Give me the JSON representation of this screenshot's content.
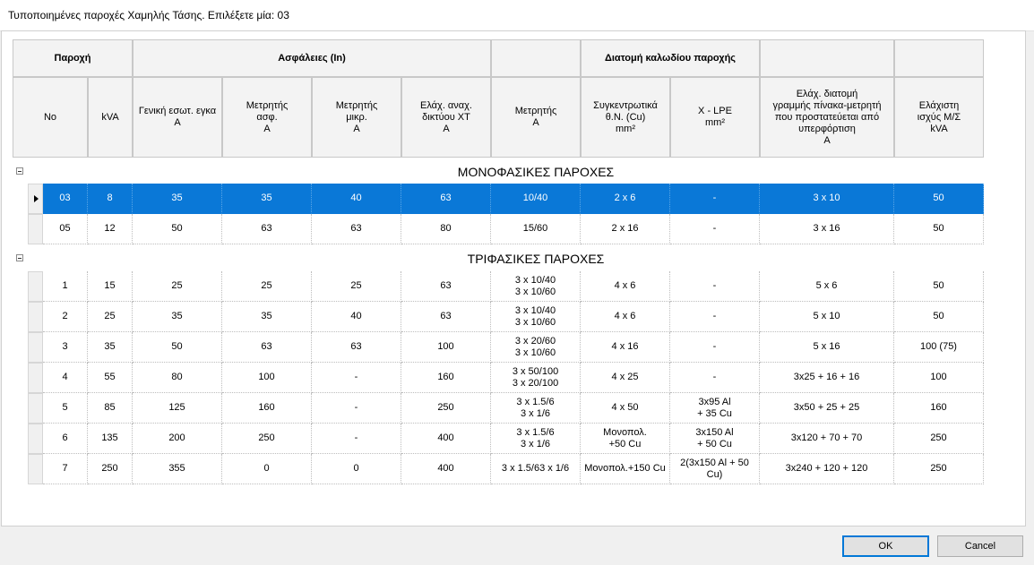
{
  "window": {
    "title": "Τυποποιημένες παροχές Χαμηλής Τάσης. Επιλέξετε μία: 03"
  },
  "header": {
    "groups": {
      "paroxi": "Παροχή",
      "asfaleies": "Ασφάλειες (In)",
      "empty1": "",
      "diatomi": "Διατομή καλωδίου παροχής",
      "empty2": "",
      "empty3": ""
    },
    "columns": [
      "No",
      "kVA",
      "Γενική εσωτ. εγκα\nA",
      "Μετρητής\nασφ.\nA",
      "Μετρητής\nμικρ.\nA",
      "Ελάχ. αναχ.\nδικτύου ΧΤ\nA",
      "Μετρητής\nA",
      "Συγκεντρωτικά\nθ.Ν. (Cu)\nmm²",
      "X - LPE\nmm²",
      "Ελάχ. διατομή\nγραμμής πίνακα-μετρητή\nπου προστατεύεται από\nυπερφόρτιση\nA",
      "Ελάχιστη\nισχύς Μ/Σ\nkVA"
    ]
  },
  "groups": [
    {
      "title": "ΜΟΝΟΦΑΣΙΚΕΣ ΠΑΡΟΧΕΣ",
      "rows": [
        [
          "03",
          "8",
          "35",
          "35",
          "40",
          "63",
          "10/40",
          "2 x 6",
          "-",
          "3 x 10",
          "50"
        ],
        [
          "05",
          "12",
          "50",
          "63",
          "63",
          "80",
          "15/60",
          "2 x 16",
          "-",
          "3 x 16",
          "50"
        ]
      ]
    },
    {
      "title": "ΤΡΙΦΑΣΙΚΕΣ ΠΑΡΟΧΕΣ",
      "rows": [
        [
          "1",
          "15",
          "25",
          "25",
          "25",
          "63",
          "3 x 10/40\n3 x 10/60",
          "4 x 6",
          "-",
          "5 x 6",
          "50"
        ],
        [
          "2",
          "25",
          "35",
          "35",
          "40",
          "63",
          "3 x 10/40\n3 x 10/60",
          "4 x 6",
          "-",
          "5 x 10",
          "50"
        ],
        [
          "3",
          "35",
          "50",
          "63",
          "63",
          "100",
          "3 x 20/60\n3 x 10/60",
          "4 x 16",
          "-",
          "5 x 16",
          "100 (75)"
        ],
        [
          "4",
          "55",
          "80",
          "100",
          "-",
          "160",
          "3 x 50/100\n3 x 20/100",
          "4 x 25",
          "-",
          "3x25 + 16 + 16",
          "100"
        ],
        [
          "5",
          "85",
          "125",
          "160",
          "-",
          "250",
          "3 x 1.5/6\n3 x 1/6",
          "4 x 50",
          "3x95 Al\n+ 35 Cu",
          "3x50 + 25 + 25",
          "160"
        ],
        [
          "6",
          "135",
          "200",
          "250",
          "-",
          "400",
          "3 x 1.5/6\n3 x 1/6",
          "Μονοπολ.\n+50 Cu",
          "3x150 Al\n+ 50 Cu",
          "3x120 + 70 + 70",
          "250"
        ],
        [
          "7",
          "250",
          "355",
          "0",
          "0",
          "400",
          "3 x 1.5/63 x 1/6",
          "Μονοπολ.+150 Cu",
          "2(3x150 Al + 50\nCu)",
          "3x240 + 120 + 120",
          "250"
        ]
      ]
    }
  ],
  "buttons": {
    "ok": "OK",
    "cancel": "Cancel"
  },
  "colors": {
    "selection": "#0a78d7"
  }
}
